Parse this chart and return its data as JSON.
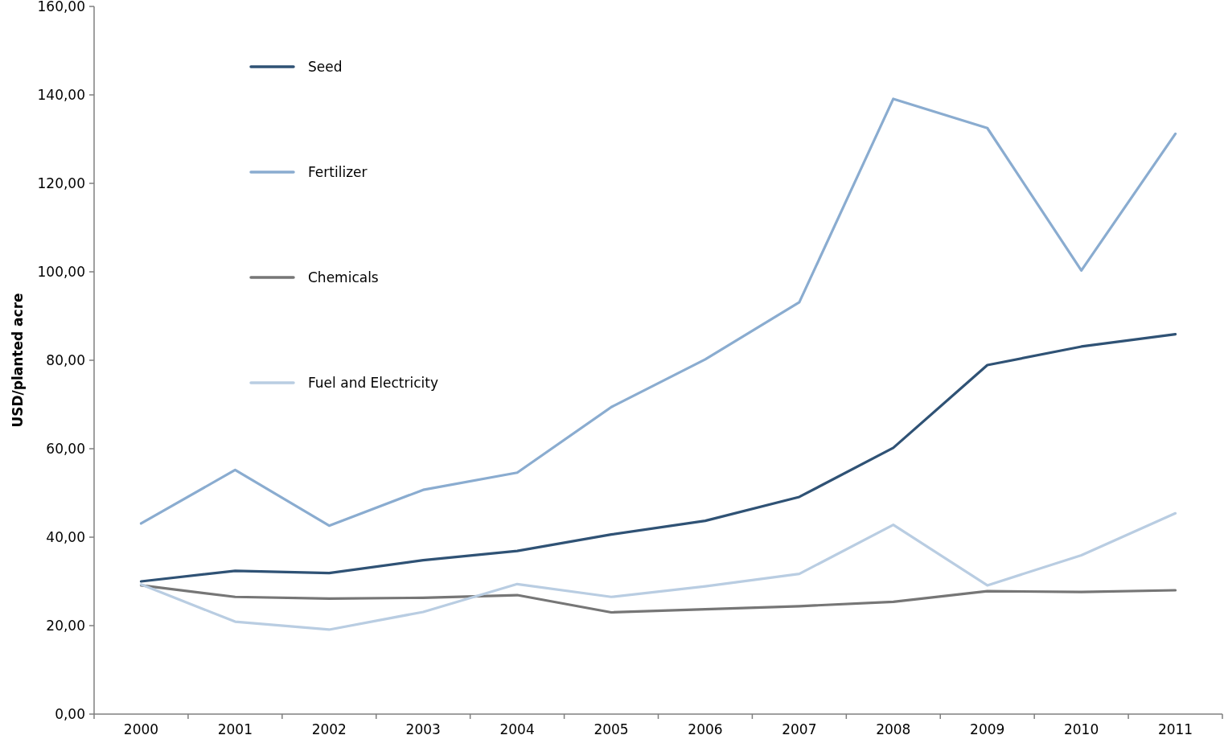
{
  "chart_data": {
    "type": "line",
    "ylabel": "USD/planted acre",
    "categories": [
      "2000",
      "2001",
      "2002",
      "2003",
      "2004",
      "2005",
      "2006",
      "2007",
      "2008",
      "2009",
      "2010",
      "2011"
    ],
    "series": [
      {
        "name": "Seed",
        "color": "#2f5275",
        "values": [
          30.0,
          32.4,
          31.9,
          34.8,
          36.9,
          40.6,
          43.7,
          49.1,
          60.2,
          78.9,
          83.1,
          85.9
        ]
      },
      {
        "name": "Fertilizer",
        "color": "#8aacd0",
        "values": [
          43.1,
          55.2,
          42.6,
          50.7,
          54.6,
          69.4,
          80.2,
          93.1,
          139.1,
          132.5,
          100.3,
          131.2
        ]
      },
      {
        "name": "Chemicals",
        "color": "#767676",
        "values": [
          29.1,
          26.5,
          26.1,
          26.3,
          26.9,
          23.0,
          23.7,
          24.4,
          25.4,
          27.8,
          27.6,
          28.0
        ]
      },
      {
        "name": "Fuel and Electricity",
        "color": "#b9cde2",
        "values": [
          29.3,
          20.9,
          19.1,
          23.1,
          29.4,
          26.5,
          28.9,
          31.7,
          42.8,
          29.1,
          35.9,
          45.4
        ]
      }
    ],
    "ylim": [
      0,
      160
    ],
    "yticks": [
      {
        "value": 0,
        "label": "0,00"
      },
      {
        "value": 20,
        "label": "20,00"
      },
      {
        "value": 40,
        "label": "40,00"
      },
      {
        "value": 60,
        "label": "60,00"
      },
      {
        "value": 80,
        "label": "80,00"
      },
      {
        "value": 100,
        "label": "100,00"
      },
      {
        "value": 120,
        "label": "120,00"
      },
      {
        "value": 140,
        "label": "140,00"
      },
      {
        "value": 160,
        "label": "160,00"
      }
    ],
    "grid": false,
    "legend": "top left",
    "marker": "none",
    "line_style": "solid"
  }
}
